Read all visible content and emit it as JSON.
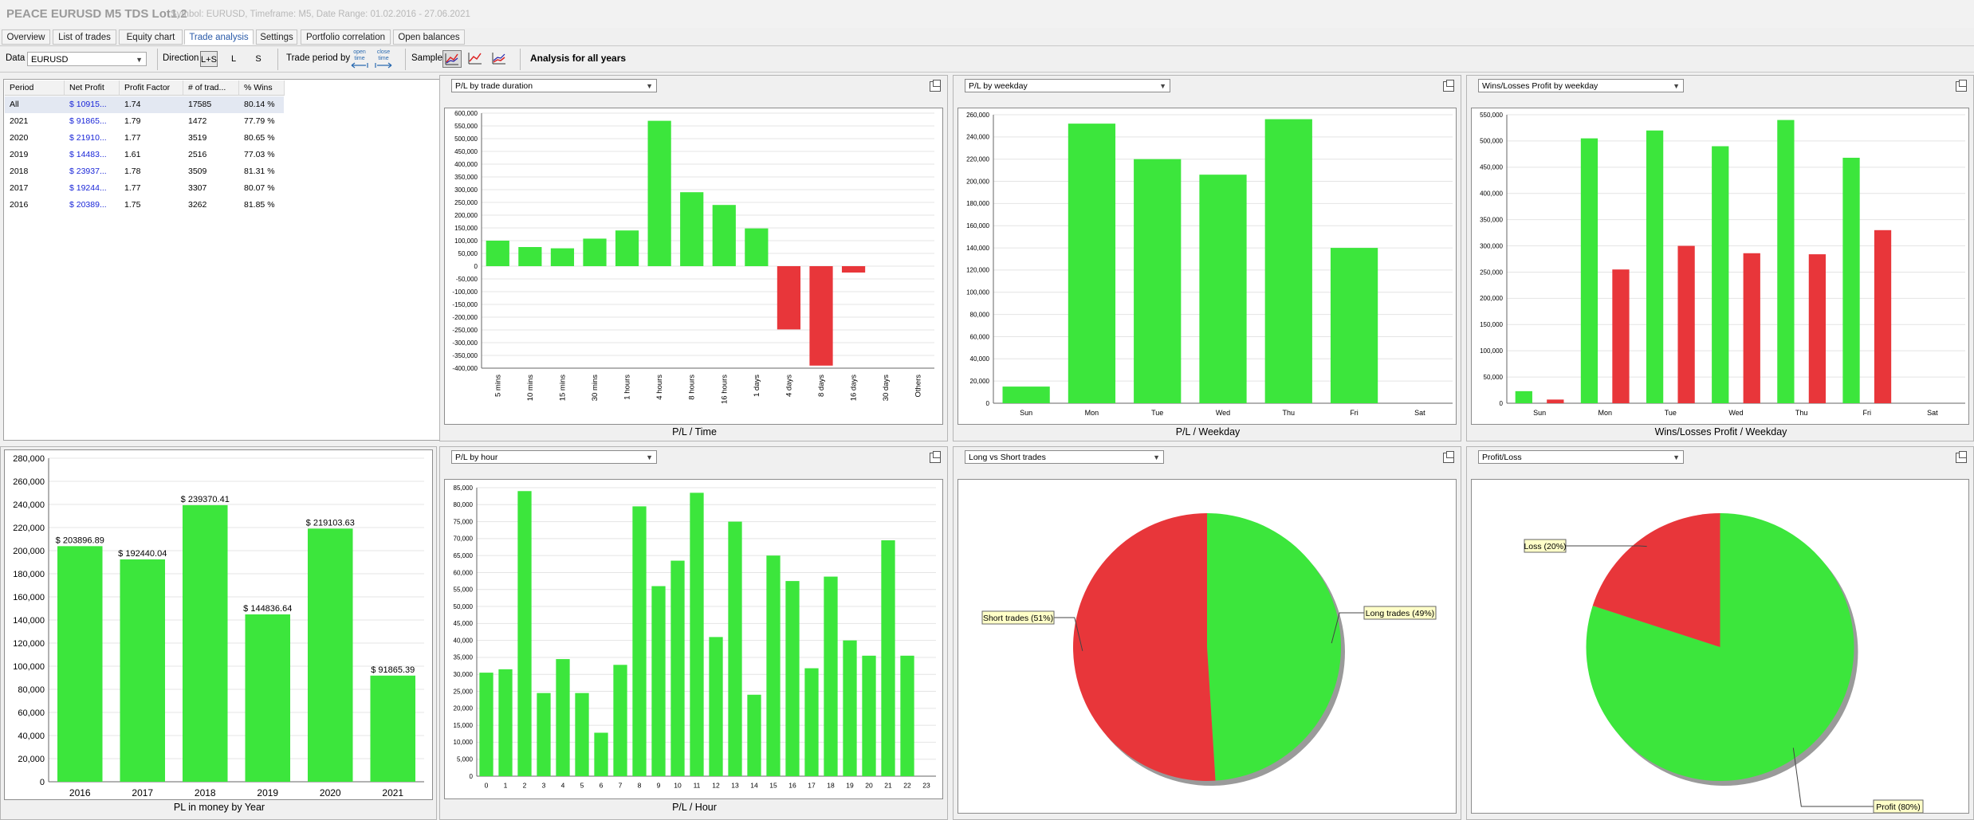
{
  "window": {
    "title": "PEACE EURUSD M5 TDS Lot1.2",
    "subtitle": "Symbol: EURUSD, Timeframe: M5, Date Range: 01.02.2016 - 27.06.2021"
  },
  "tabs": [
    "Overview",
    "List of trades",
    "Equity chart",
    "Trade analysis",
    "Settings",
    "Portfolio correlation",
    "Open balances"
  ],
  "active_tab": "Trade analysis",
  "toolbar": {
    "data_label": "Data",
    "data_value": "EURUSD",
    "direction_label": "Direction",
    "direction_options": [
      "L+S",
      "L",
      "S"
    ],
    "direction_selected": "L+S",
    "trade_period_label": "Trade period by",
    "trade_period_open": "open time",
    "trade_period_close": "close time",
    "sample_label": "Sample",
    "analysis_label": "Analysis for all years"
  },
  "period_table": {
    "headers": [
      "Period",
      "Net Profit",
      "Profit Factor",
      "# of trad...",
      "% Wins"
    ],
    "rows": [
      [
        "All",
        "$ 10915...",
        "1.74",
        "17585",
        "80.14 %"
      ],
      [
        "2021",
        "$ 91865...",
        "1.79",
        "1472",
        "77.79 %"
      ],
      [
        "2020",
        "$ 21910...",
        "1.77",
        "3519",
        "80.65 %"
      ],
      [
        "2019",
        "$ 14483...",
        "1.61",
        "2516",
        "77.03 %"
      ],
      [
        "2018",
        "$ 23937...",
        "1.78",
        "3509",
        "81.31 %"
      ],
      [
        "2017",
        "$ 19244...",
        "1.77",
        "3307",
        "80.07 %"
      ],
      [
        "2016",
        "$ 20389...",
        "1.75",
        "3262",
        "81.85 %"
      ]
    ]
  },
  "colors": {
    "profit": "#3ce63c",
    "loss": "#e8363a",
    "legend_bg": "#ffffc8"
  },
  "chart_data": [
    {
      "id": "pl_by_duration",
      "type": "bar",
      "selector": "P/L by trade duration",
      "caption": "P/L / Time",
      "categories": [
        "5 mins",
        "10 mins",
        "15 mins",
        "30 mins",
        "1 hours",
        "4 hours",
        "8 hours",
        "16 hours",
        "1 days",
        "4 days",
        "8 days",
        "16 days",
        "30 days",
        "Others"
      ],
      "values": [
        100000,
        75000,
        70000,
        108000,
        140000,
        570000,
        290000,
        240000,
        148000,
        -248000,
        -390000,
        -25000,
        0,
        0
      ],
      "ylim": [
        -400000,
        600000
      ],
      "yticks": [
        "600,000",
        "550,000",
        "500,000",
        "450,000",
        "400,000",
        "350,000",
        "300,000",
        "250,000",
        "200,000",
        "150,000",
        "100,000",
        "50,000",
        "0",
        "-50,000",
        "-100,000",
        "-150,000",
        "-200,000",
        "-250,000",
        "-300,000",
        "-350,000",
        "-400,000"
      ]
    },
    {
      "id": "pl_by_weekday",
      "type": "bar",
      "selector": "P/L by weekday",
      "caption": "P/L / Weekday",
      "categories": [
        "Sun",
        "Mon",
        "Tue",
        "Wed",
        "Thu",
        "Fri",
        "Sat"
      ],
      "values": [
        15000,
        252000,
        220000,
        206000,
        256000,
        140000,
        0
      ],
      "ylim": [
        0,
        260000
      ],
      "yticks": [
        "260,000",
        "240,000",
        "220,000",
        "200,000",
        "180,000",
        "160,000",
        "140,000",
        "120,000",
        "100,000",
        "80,000",
        "60,000",
        "40,000",
        "20,000",
        "0"
      ]
    },
    {
      "id": "wins_losses_by_weekday",
      "type": "bar",
      "selector": "Wins/Losses Profit by weekday",
      "caption": "Wins/Losses Profit / Weekday",
      "categories": [
        "Sun",
        "Mon",
        "Tue",
        "Wed",
        "Thu",
        "Fri",
        "Sat"
      ],
      "series": [
        {
          "values": [
            23000,
            505000,
            520000,
            490000,
            540000,
            468000,
            0
          ]
        },
        {
          "values": [
            7000,
            255000,
            300000,
            286000,
            284000,
            330000,
            0
          ]
        }
      ],
      "ylim": [
        0,
        550000
      ],
      "yticks": [
        "550,000",
        "500,000",
        "450,000",
        "400,000",
        "350,000",
        "300,000",
        "250,000",
        "200,000",
        "150,000",
        "100,000",
        "50,000",
        "0"
      ]
    },
    {
      "id": "pl_by_year",
      "type": "bar",
      "caption": "PL in money by Year",
      "categories": [
        "2016",
        "2017",
        "2018",
        "2019",
        "2020",
        "2021"
      ],
      "values": [
        203896.89,
        192440.04,
        239370.41,
        144836.64,
        219103.63,
        91865.39
      ],
      "data_labels": [
        "$ 203896.89",
        "$ 192440.04",
        "$ 239370.41",
        "$ 144836.64",
        "$ 219103.63",
        "$ 91865.39"
      ],
      "ylim": [
        0,
        280000
      ],
      "yticks": [
        "280,000",
        "260,000",
        "240,000",
        "220,000",
        "200,000",
        "180,000",
        "160,000",
        "140,000",
        "120,000",
        "100,000",
        "80,000",
        "60,000",
        "40,000",
        "20,000",
        "0"
      ]
    },
    {
      "id": "pl_by_hour",
      "type": "bar",
      "selector": "P/L by hour",
      "caption": "P/L / Hour",
      "categories": [
        "0",
        "1",
        "2",
        "3",
        "4",
        "5",
        "6",
        "7",
        "8",
        "9",
        "10",
        "11",
        "12",
        "13",
        "14",
        "15",
        "16",
        "17",
        "18",
        "19",
        "20",
        "21",
        "22",
        "23"
      ],
      "values": [
        30500,
        31500,
        84000,
        24500,
        34500,
        24500,
        12800,
        32800,
        79500,
        56000,
        63500,
        83500,
        41000,
        75000,
        24000,
        65000,
        57500,
        31800,
        58800,
        40000,
        35500,
        69500,
        35500,
        0
      ],
      "ylim": [
        0,
        85000
      ],
      "yticks": [
        "85,000",
        "80,000",
        "75,000",
        "70,000",
        "65,000",
        "60,000",
        "55,000",
        "50,000",
        "45,000",
        "40,000",
        "35,000",
        "30,000",
        "25,000",
        "20,000",
        "15,000",
        "10,000",
        "5,000",
        "0"
      ]
    },
    {
      "id": "long_vs_short",
      "type": "pie",
      "selector": "Long vs Short trades",
      "slices": [
        {
          "label": "Long trades (49%)",
          "value": 49
        },
        {
          "label": "Short trades (51%)",
          "value": 51
        }
      ]
    },
    {
      "id": "profit_loss",
      "type": "pie",
      "selector": "Profit/Loss",
      "slices": [
        {
          "label": "Profit (80%)",
          "value": 80
        },
        {
          "label": "Loss (20%)",
          "value": 20
        }
      ]
    }
  ]
}
